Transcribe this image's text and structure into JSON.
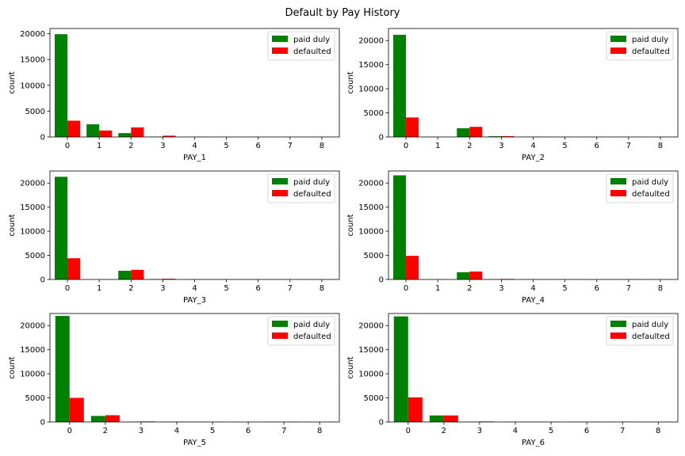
{
  "title": "Default by Pay History",
  "colors": {
    "paid_duly": "#008000",
    "defaulted": "#ff0000"
  },
  "chart_data": [
    {
      "type": "bar",
      "xlabel": "PAY_1",
      "ylabel": "count",
      "categories": [
        "0",
        "1",
        "2",
        "3",
        "4",
        "5",
        "6",
        "7",
        "8"
      ],
      "ylim": [
        0,
        21000
      ],
      "yticks": [
        0,
        5000,
        10000,
        15000,
        20000
      ],
      "legend": "top-right",
      "grid": false,
      "series": [
        {
          "name": "paid duly",
          "color": "#008000",
          "values": [
            19900,
            2450,
            750,
            60,
            15,
            5,
            3,
            3,
            5
          ]
        },
        {
          "name": "defaulted",
          "color": "#ff0000",
          "values": [
            3150,
            1250,
            1850,
            250,
            50,
            10,
            5,
            10,
            5
          ]
        }
      ]
    },
    {
      "type": "bar",
      "xlabel": "PAY_2",
      "ylabel": "count",
      "categories": [
        "0",
        "1",
        "2",
        "3",
        "4",
        "5",
        "6",
        "7",
        "8"
      ],
      "ylim": [
        0,
        22500
      ],
      "yticks": [
        0,
        5000,
        10000,
        15000,
        20000
      ],
      "legend": "top-right",
      "grid": false,
      "series": [
        {
          "name": "paid duly",
          "color": "#008000",
          "values": [
            21200,
            20,
            1800,
            150,
            40,
            10,
            5,
            8,
            1
          ]
        },
        {
          "name": "defaulted",
          "color": "#ff0000",
          "values": [
            4050,
            8,
            2100,
            175,
            60,
            15,
            5,
            12,
            1
          ]
        }
      ]
    },
    {
      "type": "bar",
      "xlabel": "PAY_3",
      "ylabel": "count",
      "categories": [
        "0",
        "1",
        "2",
        "3",
        "4",
        "5",
        "6",
        "7",
        "8"
      ],
      "ylim": [
        0,
        22500
      ],
      "yticks": [
        0,
        5000,
        10000,
        15000,
        20000
      ],
      "legend": "top-right",
      "grid": false,
      "series": [
        {
          "name": "paid duly",
          "color": "#008000",
          "values": [
            21300,
            2,
            1800,
            90,
            30,
            8,
            8,
            10,
            1
          ]
        },
        {
          "name": "defaulted",
          "color": "#ff0000",
          "values": [
            4400,
            2,
            2000,
            150,
            45,
            12,
            10,
            15,
            1
          ]
        }
      ]
    },
    {
      "type": "bar",
      "xlabel": "PAY_4",
      "ylabel": "count",
      "categories": [
        "0",
        "1",
        "2",
        "3",
        "4",
        "5",
        "6",
        "7",
        "8"
      ],
      "ylim": [
        0,
        22500
      ],
      "yticks": [
        0,
        5000,
        10000,
        15000,
        20000
      ],
      "legend": "top-right",
      "grid": false,
      "series": [
        {
          "name": "paid duly",
          "color": "#008000",
          "values": [
            21600,
            1,
            1500,
            70,
            25,
            10,
            3,
            10,
            1
          ]
        },
        {
          "name": "defaulted",
          "color": "#ff0000",
          "values": [
            4900,
            1,
            1650,
            110,
            40,
            25,
            2,
            48,
            1
          ]
        }
      ]
    },
    {
      "type": "bar",
      "xlabel": "PAY_5",
      "ylabel": "count",
      "categories": [
        "0",
        "2",
        "3",
        "4",
        "5",
        "6",
        "7",
        "8"
      ],
      "ylim": [
        0,
        22500
      ],
      "yticks": [
        0,
        5000,
        10000,
        15000,
        20000
      ],
      "legend": "top-right",
      "grid": false,
      "series": [
        {
          "name": "paid duly",
          "color": "#008000",
          "values": [
            22000,
            1250,
            70,
            35,
            8,
            2,
            10,
            1
          ]
        },
        {
          "name": "defaulted",
          "color": "#ff0000",
          "values": [
            5000,
            1400,
            110,
            50,
            10,
            2,
            48,
            1
          ]
        }
      ]
    },
    {
      "type": "bar",
      "xlabel": "PAY_6",
      "ylabel": "count",
      "categories": [
        "0",
        "2",
        "3",
        "4",
        "5",
        "6",
        "7",
        "8"
      ],
      "ylim": [
        0,
        22500
      ],
      "yticks": [
        0,
        5000,
        10000,
        15000,
        20000
      ],
      "legend": "top-right",
      "grid": false,
      "series": [
        {
          "name": "paid duly",
          "color": "#008000",
          "values": [
            21900,
            1350,
            75,
            20,
            6,
            4,
            10,
            1
          ]
        },
        {
          "name": "defaulted",
          "color": "#ff0000",
          "values": [
            5100,
            1350,
            110,
            30,
            8,
            3,
            40,
            1
          ]
        }
      ]
    }
  ]
}
